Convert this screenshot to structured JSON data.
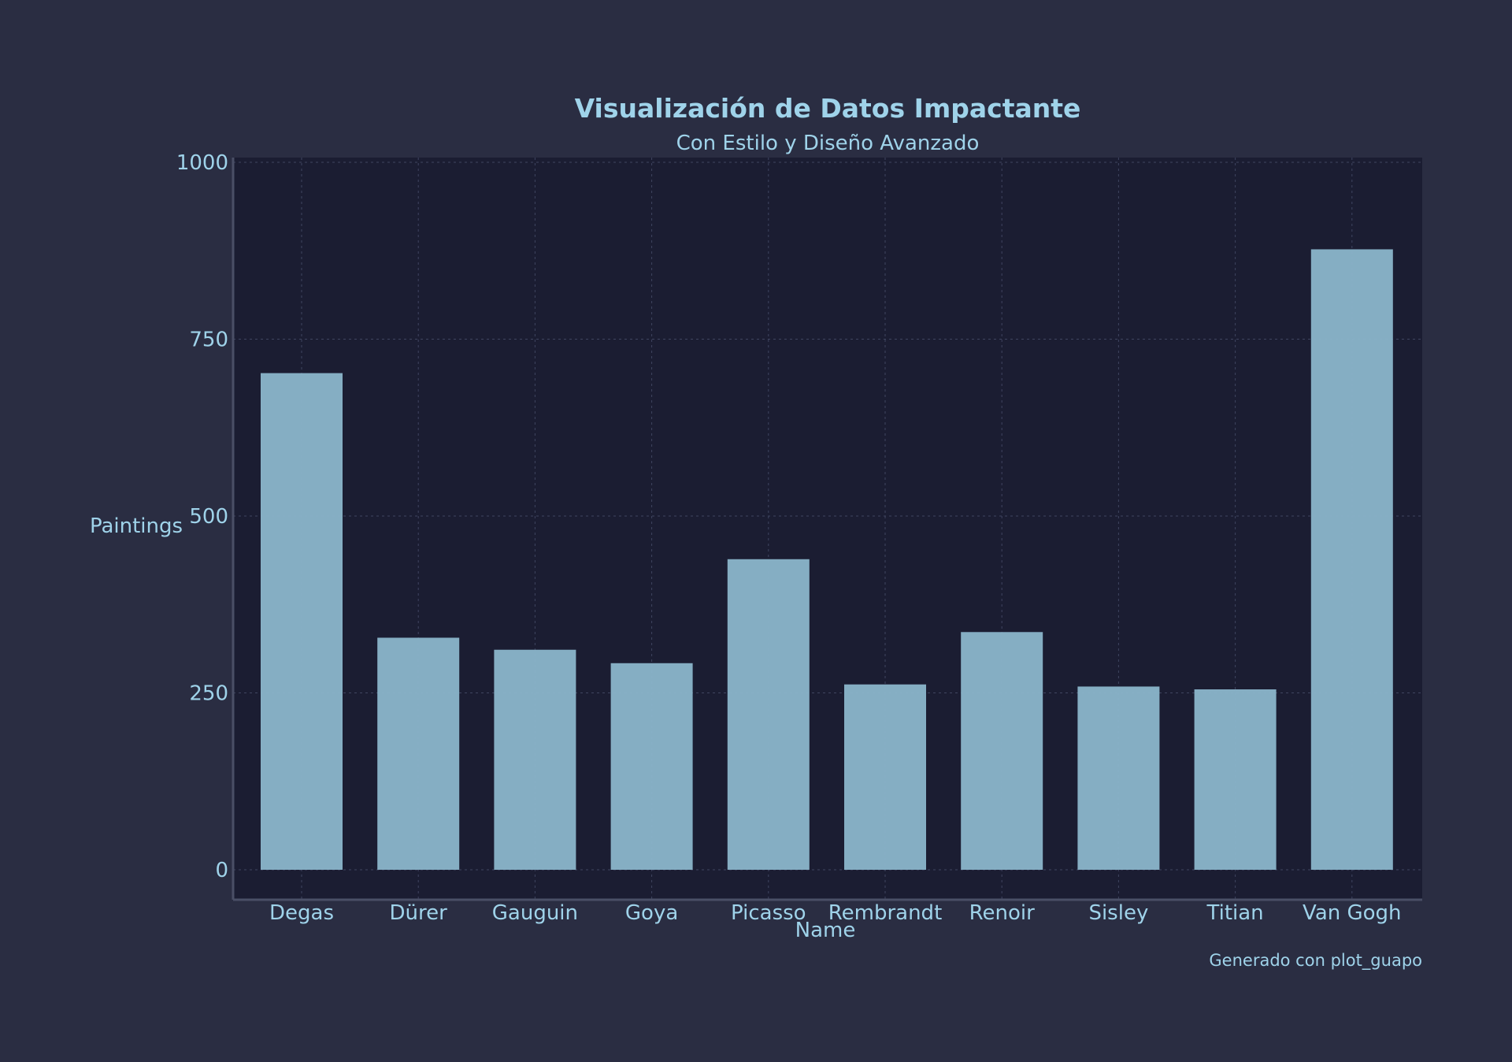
{
  "chart_data": {
    "type": "bar",
    "title": "Visualización de Datos Impactante",
    "subtitle": "Con Estilo y Diseño Avanzado",
    "xlabel": "Name",
    "ylabel": "Paintings",
    "caption": "Generado con plot_guapo",
    "categories": [
      "Degas",
      "Dürer",
      "Gauguin",
      "Goya",
      "Picasso",
      "Rembrandt",
      "Renoir",
      "Sisley",
      "Titian",
      "Van Gogh"
    ],
    "values": [
      702,
      328,
      311,
      292,
      439,
      262,
      336,
      259,
      255,
      877
    ],
    "ylim": [
      0,
      1000
    ],
    "yticks": [
      0,
      250,
      500,
      750,
      1000
    ],
    "grid": true,
    "legend": "none",
    "colors": {
      "background": "#2a2d42",
      "plot_background": "#1b1d32",
      "bar": "#89b3c8",
      "text": "#9fd3ea",
      "grid": "#3f4560",
      "axis_line": "#4a4f66"
    }
  }
}
